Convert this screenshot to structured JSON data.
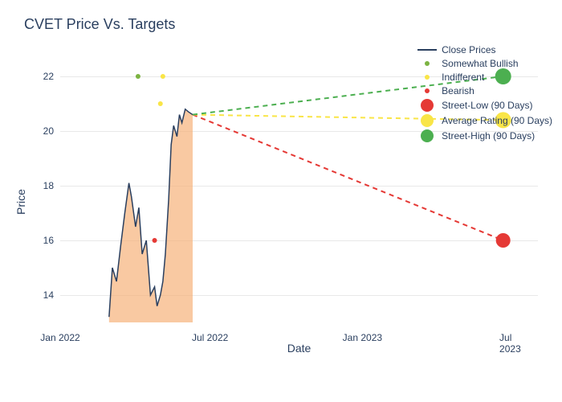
{
  "chart": {
    "type": "line",
    "title": "CVET Price Vs. Targets",
    "xlabel": "Date",
    "ylabel": "Price",
    "background_color": "#ffffff",
    "grid_color": "#e8e8e8",
    "title_fontsize": 18,
    "title_color": "#2a3f5f",
    "label_fontsize": 14,
    "tick_fontsize": 12,
    "axis_color": "#2a3f5f",
    "ylim": [
      13,
      23
    ],
    "yticks": [
      14,
      16,
      18,
      20,
      22
    ],
    "xlim": [
      "2022-01-01",
      "2023-08-01"
    ],
    "xticks": [
      {
        "pos": "2022-01-01",
        "label": "Jan 2022"
      },
      {
        "pos": "2022-07-01",
        "label": "Jul 2022"
      },
      {
        "pos": "2023-01-01",
        "label": "Jan 2023"
      },
      {
        "pos": "2023-07-01",
        "label": "Jul 2023"
      }
    ],
    "price_area": {
      "color": "#f7b27a",
      "opacity": 0.7
    },
    "price_line": {
      "color": "#2a3f5f",
      "width": 1.5,
      "data": [
        {
          "x": "2022-03-01",
          "y": 13.2
        },
        {
          "x": "2022-03-05",
          "y": 15.0
        },
        {
          "x": "2022-03-10",
          "y": 14.5
        },
        {
          "x": "2022-03-15",
          "y": 15.8
        },
        {
          "x": "2022-03-20",
          "y": 17.0
        },
        {
          "x": "2022-03-25",
          "y": 18.1
        },
        {
          "x": "2022-03-28",
          "y": 17.6
        },
        {
          "x": "2022-04-02",
          "y": 16.5
        },
        {
          "x": "2022-04-06",
          "y": 17.2
        },
        {
          "x": "2022-04-10",
          "y": 15.5
        },
        {
          "x": "2022-04-15",
          "y": 16.0
        },
        {
          "x": "2022-04-20",
          "y": 14.0
        },
        {
          "x": "2022-04-25",
          "y": 14.3
        },
        {
          "x": "2022-04-28",
          "y": 13.6
        },
        {
          "x": "2022-05-02",
          "y": 14.0
        },
        {
          "x": "2022-05-05",
          "y": 14.5
        },
        {
          "x": "2022-05-08",
          "y": 15.5
        },
        {
          "x": "2022-05-12",
          "y": 17.5
        },
        {
          "x": "2022-05-15",
          "y": 19.5
        },
        {
          "x": "2022-05-18",
          "y": 20.2
        },
        {
          "x": "2022-05-22",
          "y": 19.8
        },
        {
          "x": "2022-05-25",
          "y": 20.6
        },
        {
          "x": "2022-05-28",
          "y": 20.3
        },
        {
          "x": "2022-06-01",
          "y": 20.8
        },
        {
          "x": "2022-06-05",
          "y": 20.7
        },
        {
          "x": "2022-06-10",
          "y": 20.6
        }
      ]
    },
    "rating_dots": [
      {
        "x": "2022-04-05",
        "y": 22.0,
        "color": "#7cb342",
        "size": 6,
        "name": "somewhat-bullish"
      },
      {
        "x": "2022-05-05",
        "y": 22.0,
        "color": "#f9e547",
        "size": 6,
        "name": "indifferent"
      },
      {
        "x": "2022-04-25",
        "y": 16.0,
        "color": "#e53935",
        "size": 6,
        "name": "bearish"
      },
      {
        "x": "2022-05-02",
        "y": 21.0,
        "color": "#f9e547",
        "size": 6,
        "name": "indifferent"
      }
    ],
    "target_lines": [
      {
        "name": "street-low",
        "color": "#e53935",
        "dash": "6,5",
        "width": 2,
        "marker_size": 18,
        "start": {
          "x": "2022-06-10",
          "y": 20.6
        },
        "end": {
          "x": "2023-06-20",
          "y": 16.0
        }
      },
      {
        "name": "average-rating",
        "color": "#f9e547",
        "dash": "6,5",
        "width": 2,
        "marker_size": 20,
        "start": {
          "x": "2022-06-10",
          "y": 20.6
        },
        "end": {
          "x": "2023-06-20",
          "y": 20.4
        }
      },
      {
        "name": "street-high",
        "color": "#4caf50",
        "dash": "6,5",
        "width": 2,
        "marker_size": 20,
        "start": {
          "x": "2022-06-10",
          "y": 20.6
        },
        "end": {
          "x": "2023-06-20",
          "y": 22.0
        }
      }
    ],
    "legend": {
      "fontsize": 12,
      "items": [
        {
          "type": "line",
          "color": "#2a3f5f",
          "label": "Close Prices"
        },
        {
          "type": "dot-sm",
          "color": "#7cb342",
          "label": "Somewhat Bullish"
        },
        {
          "type": "dot-sm",
          "color": "#f9e547",
          "label": "Indifferent"
        },
        {
          "type": "dot-sm",
          "color": "#e53935",
          "label": "Bearish"
        },
        {
          "type": "dot-lg",
          "color": "#e53935",
          "label": "Street-Low (90 Days)"
        },
        {
          "type": "dot-lg",
          "color": "#f9e547",
          "label": "Average Rating (90 Days)"
        },
        {
          "type": "dot-lg",
          "color": "#4caf50",
          "label": "Street-High (90 Days)"
        }
      ]
    }
  }
}
